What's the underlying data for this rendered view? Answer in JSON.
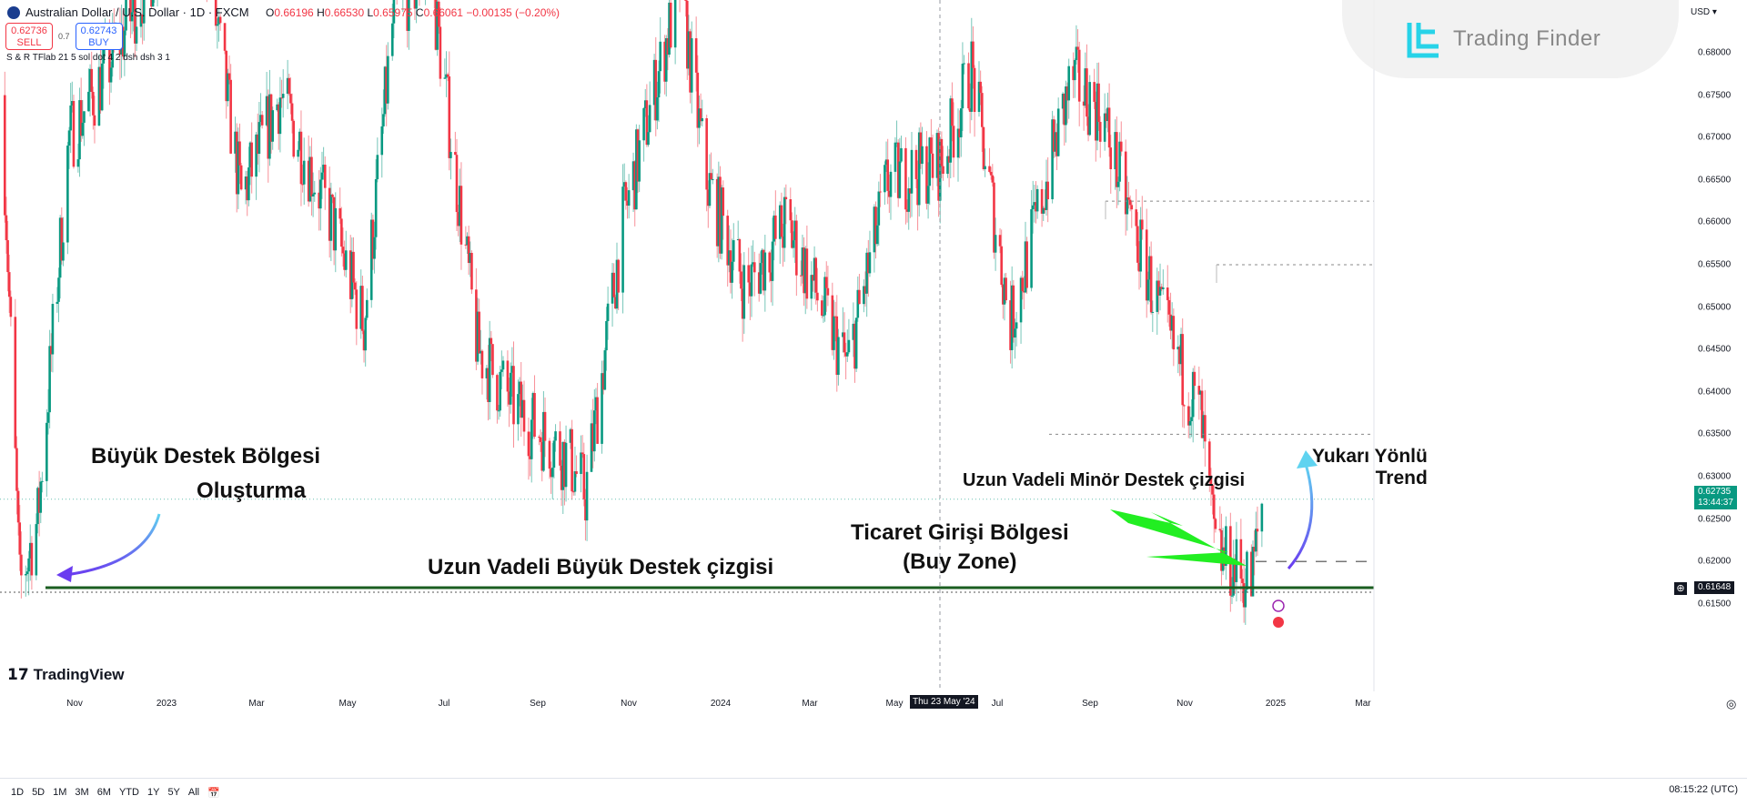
{
  "header": {
    "symbol_title": "Australian Dollar / U.S. Dollar · 1D · FXCM",
    "open_label": "O",
    "open": "0.66196",
    "high_label": "H",
    "high": "0.66530",
    "low_label": "L",
    "low": "0.65975",
    "close_label": "C",
    "close": "0.66061",
    "change": "−0.00135 (−0.20%)"
  },
  "trade": {
    "sell_price": "0.62736",
    "sell_label": "SELL",
    "spread": "0.7",
    "buy_price": "0.62743",
    "buy_label": "BUY"
  },
  "indicator": "S & R TFlab 21 5 sol dot 4 2 dsh dsh 3 1",
  "watermark": "Trading Finder",
  "currency": "USD",
  "colors": {
    "up": "#089981",
    "down": "#f23645",
    "support_line": "#1b5e20",
    "green_arrow": "#22ee22"
  },
  "chart_data": {
    "type": "candlestick",
    "interval": "1D",
    "price_ticks": [
      "0.68000",
      "0.67500",
      "0.67000",
      "0.66500",
      "0.66000",
      "0.65500",
      "0.65000",
      "0.64500",
      "0.64000",
      "0.63500",
      "0.63000",
      "0.62500",
      "0.62000",
      "0.61500"
    ],
    "x_ticks": [
      "Nov",
      "2023",
      "Mar",
      "May",
      "Jul",
      "Sep",
      "Nov",
      "2024",
      "Mar",
      "May",
      "Jul",
      "Sep",
      "Nov",
      "2025",
      "Mar"
    ],
    "crosshair_date": "Thu 23 May '24",
    "last_price": "0.62735",
    "countdown": "13:44:37",
    "support_price": "0.61648",
    "trend_points": [
      [
        "2022-10-01",
        0.675
      ],
      [
        "2022-10-13",
        0.617
      ],
      [
        "2022-10-25",
        0.625
      ],
      [
        "2022-11-15",
        0.67
      ],
      [
        "2022-12-10",
        0.678
      ],
      [
        "2023-01-10",
        0.69
      ],
      [
        "2023-02-02",
        0.71
      ],
      [
        "2023-02-20",
        0.685
      ],
      [
        "2023-03-10",
        0.663
      ],
      [
        "2023-04-05",
        0.675
      ],
      [
        "2023-05-10",
        0.66
      ],
      [
        "2023-05-31",
        0.648
      ],
      [
        "2023-06-20",
        0.685
      ],
      [
        "2023-07-14",
        0.69
      ],
      [
        "2023-08-15",
        0.645
      ],
      [
        "2023-09-10",
        0.638
      ],
      [
        "2023-10-15",
        0.632
      ],
      [
        "2023-10-26",
        0.628
      ],
      [
        "2023-11-20",
        0.66
      ],
      [
        "2023-12-28",
        0.688
      ],
      [
        "2024-01-15",
        0.665
      ],
      [
        "2024-02-10",
        0.652
      ],
      [
        "2024-03-08",
        0.66
      ],
      [
        "2024-04-18",
        0.643
      ],
      [
        "2024-05-15",
        0.665
      ],
      [
        "2024-06-20",
        0.667
      ],
      [
        "2024-07-10",
        0.678
      ],
      [
        "2024-08-05",
        0.648
      ],
      [
        "2024-09-15",
        0.677
      ],
      [
        "2024-10-05",
        0.673
      ],
      [
        "2024-10-25",
        0.66
      ],
      [
        "2024-11-15",
        0.648
      ],
      [
        "2024-12-10",
        0.637
      ],
      [
        "2024-12-20",
        0.621
      ],
      [
        "2025-01-13",
        0.6175
      ],
      [
        "2025-01-20",
        0.627
      ]
    ],
    "levels": {
      "major_support": 0.6165,
      "minor_support": 0.62,
      "resistance_levels": [
        0.6625,
        0.655,
        0.635
      ]
    }
  },
  "annotations": {
    "major_zone_l1": "Büyük Destek Bölgesi",
    "major_zone_l2": "Oluşturma",
    "major_line": "Uzun Vadeli Büyük Destek çizgisi",
    "minor_line": "Uzun Vadeli Minör Destek çizgisi",
    "entry_l1": "Ticaret Girişi Bölgesi",
    "entry_l2": "(Buy Zone)",
    "trend_l1": "Yukarı Yönlü",
    "trend_l2": "Trend"
  },
  "footer": {
    "brand": "TradingView",
    "ranges": [
      "1D",
      "5D",
      "1M",
      "3M",
      "6M",
      "YTD",
      "1Y",
      "5Y",
      "All"
    ],
    "clock": "08:15:22 (UTC)"
  }
}
